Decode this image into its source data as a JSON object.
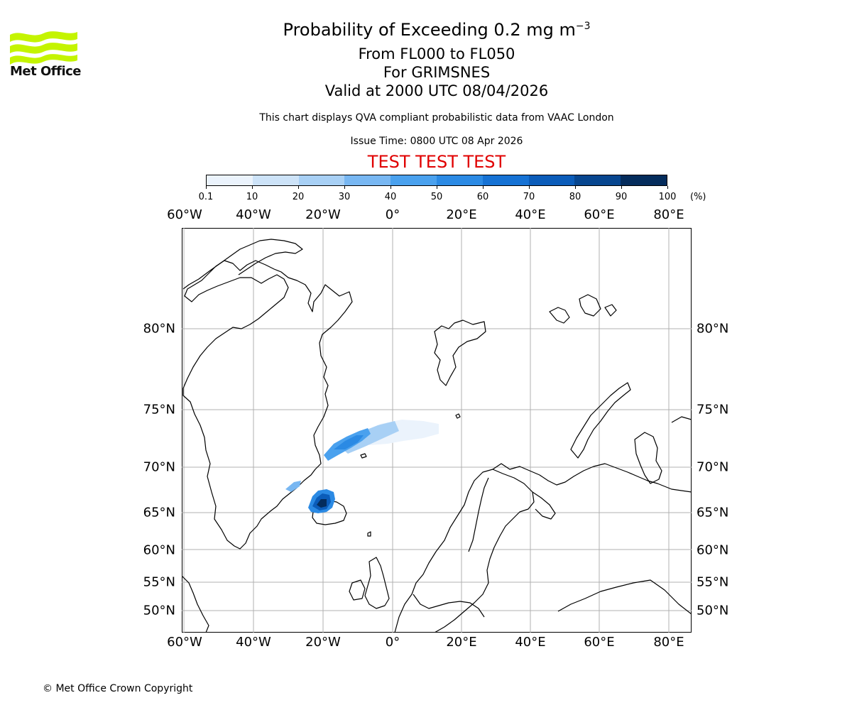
{
  "logo": {
    "text": "Met Office",
    "color": "#c0f000"
  },
  "title": {
    "line1_prefix": "Probability of Exceeding 0.2 mg m",
    "line1_exponent": "−3",
    "line2": "From FL000 to FL050",
    "line3": "For GRIMSNES",
    "line4": "Valid at 2000 UTC 08/04/2026"
  },
  "subtitle": "This chart displays QVA compliant probabilistic data from VAAC London",
  "issue_time": "Issue Time: 0800 UTC 08 Apr 2026",
  "test_banner": "TEST TEST TEST",
  "colorbar": {
    "ticks": [
      "0.1",
      "10",
      "20",
      "30",
      "40",
      "50",
      "60",
      "70",
      "80",
      "90",
      "100"
    ],
    "unit": "(%)",
    "colors": [
      "#ebf3fc",
      "#cde3f8",
      "#a8d0f5",
      "#78b7f2",
      "#4aa1ee",
      "#2b8ae4",
      "#1672d4",
      "#0b5cb9",
      "#07468f",
      "#042c5c"
    ]
  },
  "map": {
    "lon_labels": [
      "60°W",
      "40°W",
      "20°W",
      "0°",
      "20°E",
      "40°E",
      "60°E",
      "80°E"
    ],
    "lat_labels": [
      "80°N",
      "75°N",
      "70°N",
      "65°N",
      "60°N",
      "55°N",
      "50°N"
    ],
    "plume_levels": [
      "0.1-10",
      "10-20",
      "20-30",
      "30-40",
      "40-50",
      "50-60",
      "60-70",
      "70-80",
      "80-90",
      "90-100"
    ]
  },
  "copyright": "© Met Office Crown Copyright"
}
